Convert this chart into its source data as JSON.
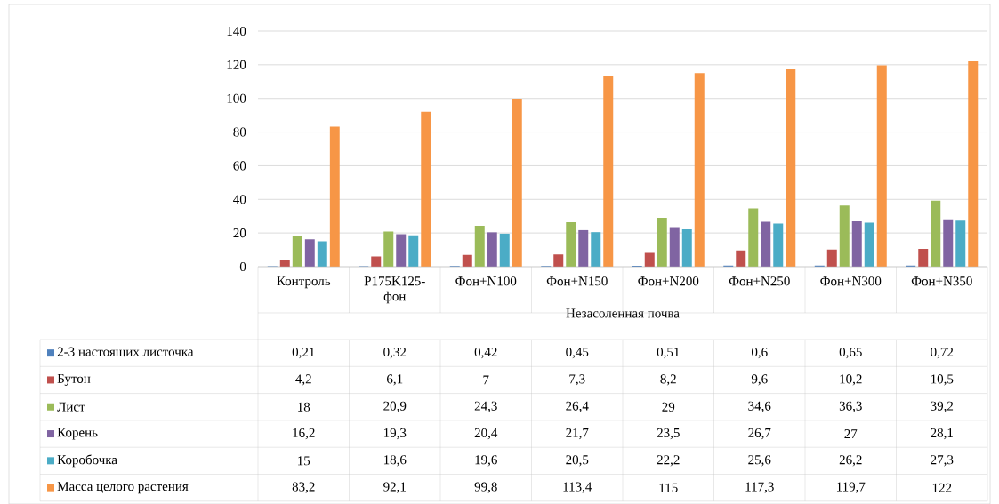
{
  "chart_data": {
    "type": "bar",
    "xlabel": "Незасоленная почва",
    "categories": [
      "Контроль",
      "P175K125-фон",
      "Фон+N100",
      "Фон+N150",
      "Фон+N200",
      "Фон+N250",
      "Фон+N300",
      "Фон+N350"
    ],
    "series": [
      {
        "name": "2-3 настоящих листочка",
        "color": "#4f81bd",
        "values": [
          0.21,
          0.32,
          0.42,
          0.45,
          0.51,
          0.6,
          0.65,
          0.72
        ],
        "value_labels": [
          "0,21",
          "0,32",
          "0,42",
          "0,45",
          "0,51",
          "0,6",
          "0,65",
          "0,72"
        ]
      },
      {
        "name": "Бутон",
        "color": "#c0504d",
        "values": [
          4.2,
          6.1,
          7,
          7.3,
          8.2,
          9.6,
          10.2,
          10.5
        ],
        "value_labels": [
          "4,2",
          "6,1",
          "7",
          "7,3",
          "8,2",
          "9,6",
          "10,2",
          "10,5"
        ]
      },
      {
        "name": "Лист",
        "color": "#9bbb59",
        "values": [
          18,
          20.9,
          24.3,
          26.4,
          29,
          34.6,
          36.3,
          39.2
        ],
        "value_labels": [
          "18",
          "20,9",
          "24,3",
          "26,4",
          "29",
          "34,6",
          "36,3",
          "39,2"
        ]
      },
      {
        "name": "Корень",
        "color": "#8064a2",
        "values": [
          16.2,
          19.3,
          20.4,
          21.7,
          23.5,
          26.7,
          27,
          28.1
        ],
        "value_labels": [
          "16,2",
          "19,3",
          "20,4",
          "21,7",
          "23,5",
          "26,7",
          "27",
          "28,1"
        ]
      },
      {
        "name": "Коробочка",
        "color": "#4bacc6",
        "values": [
          15,
          18.6,
          19.6,
          20.5,
          22.2,
          25.6,
          26.2,
          27.3
        ],
        "value_labels": [
          "15",
          "18,6",
          "19,6",
          "20,5",
          "22,2",
          "25,6",
          "26,2",
          "27,3"
        ]
      },
      {
        "name": "Масса целого растения",
        "color": "#f79646",
        "values": [
          83.2,
          92.1,
          99.8,
          113.4,
          115,
          117.3,
          119.7,
          122
        ],
        "value_labels": [
          "83,2",
          "92,1",
          "99,8",
          "113,4",
          "115",
          "117,3",
          "119,7",
          "122"
        ]
      }
    ],
    "ylim": [
      0,
      140
    ],
    "yticks": [
      0,
      20,
      40,
      60,
      80,
      100,
      120,
      140
    ],
    "grid": "y",
    "legend": "bottom"
  }
}
